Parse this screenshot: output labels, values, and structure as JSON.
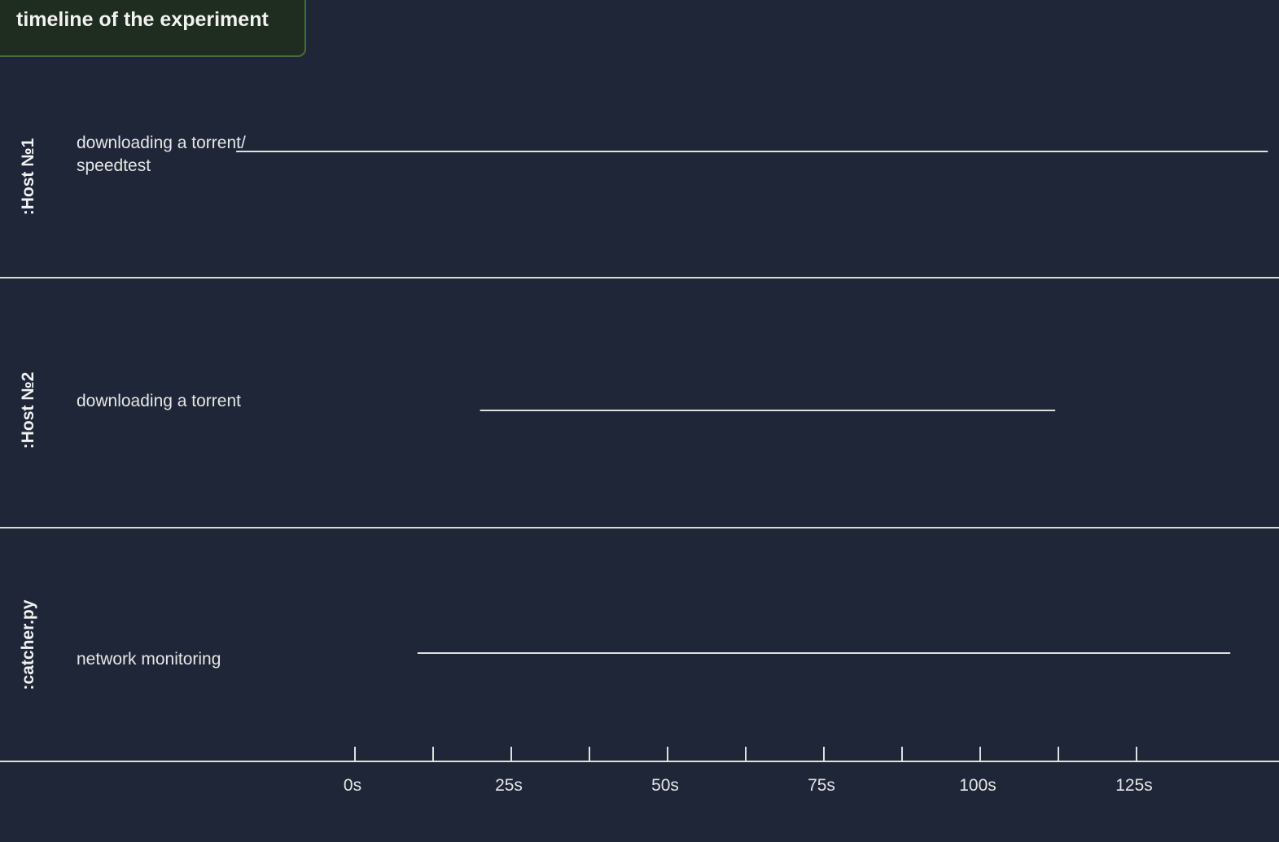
{
  "title": "timeline of the experiment",
  "chart_data": {
    "type": "timeline",
    "xlabel": "",
    "x_ticks": [
      "0s",
      "25s",
      "50s",
      "75s",
      "100s",
      "125s"
    ],
    "x_tick_values": [
      0,
      25,
      50,
      75,
      100,
      125
    ],
    "minor_tick_values": [
      0,
      12.5,
      25,
      37.5,
      50,
      62.5,
      75,
      87.5,
      100,
      112.5,
      125
    ],
    "xlim": [
      -19,
      147
    ],
    "lanes": [
      {
        "label": ":Host №1",
        "task": "downloading a torrent/ speedtest",
        "start": -19,
        "end": 146
      },
      {
        "label": ":Host №2",
        "task": "downloading a torrent",
        "start": 20,
        "end": 112
      },
      {
        "label": ":catcher.py",
        "task": "network monitoring",
        "start": 10,
        "end": 140
      }
    ],
    "colors": {
      "background": "#1e2638",
      "line": "#e0e0e0",
      "title_bg": "#1e2d1f",
      "title_border": "#4a6b3c"
    }
  }
}
